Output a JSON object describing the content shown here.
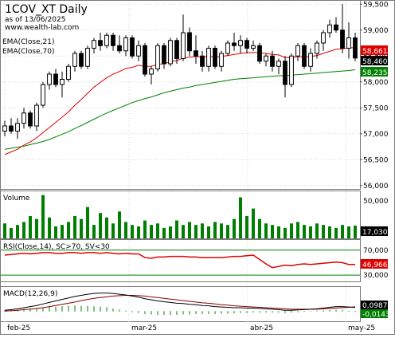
{
  "header": {
    "title": "1COV_XT Daily",
    "asof": "as of 13/06/2025",
    "site": "www.wealth-lab.com"
  },
  "legend": {
    "ema_fast": "EMA(Close,21)",
    "ema_slow": "EMA(Close,70)"
  },
  "panels": {
    "volume": "Volume",
    "rsi": "RSI(Close,14), SC>70, SV<30",
    "macd": "MACD(12,26,9)"
  },
  "colors": {
    "up": "#000000",
    "down": "#000000",
    "ema_fast": "#e00000",
    "ema_slow": "#008000",
    "volume": "#008000",
    "rsi": "#e00000",
    "level": "#008000",
    "macd": "#000000",
    "signal": "#8b0000",
    "hist": "#008000",
    "axis_tag": "#e00000"
  },
  "chart_data": [
    {
      "type": "candlestick",
      "title": "1COV_XT Daily",
      "ylim": [
        55.95,
        59.55
      ],
      "y_ticks": [
        "59,500",
        "59,000",
        "58,500",
        "58,000",
        "57,500",
        "57,000",
        "56,500",
        "56,000"
      ],
      "x_ticks": [
        "feb-25",
        "mar-25",
        "abr-25",
        "may-25"
      ],
      "last_values": {
        "ema_fast": "58,661",
        "close": "58,460",
        "ema_slow": "58,235"
      },
      "candles": [
        [
          57.05,
          57.25,
          56.95,
          57.15
        ],
        [
          57.15,
          57.3,
          57.0,
          57.05
        ],
        [
          57.05,
          57.3,
          56.9,
          57.2
        ],
        [
          57.2,
          57.5,
          57.1,
          57.4
        ],
        [
          57.4,
          57.45,
          57.1,
          57.15
        ],
        [
          57.15,
          57.6,
          57.05,
          57.55
        ],
        [
          57.55,
          58.0,
          57.5,
          57.95
        ],
        [
          57.95,
          58.2,
          57.85,
          58.15
        ],
        [
          58.15,
          58.25,
          57.9,
          57.95
        ],
        [
          57.95,
          58.2,
          57.7,
          58.05
        ],
        [
          58.05,
          58.35,
          58.0,
          58.3
        ],
        [
          58.3,
          58.6,
          58.2,
          58.55
        ],
        [
          58.55,
          58.6,
          58.25,
          58.3
        ],
        [
          58.3,
          58.7,
          58.25,
          58.65
        ],
        [
          58.65,
          58.85,
          58.55,
          58.8
        ],
        [
          58.8,
          58.95,
          58.6,
          58.7
        ],
        [
          58.7,
          58.95,
          58.65,
          58.9
        ],
        [
          58.9,
          58.95,
          58.6,
          58.7
        ],
        [
          58.7,
          58.9,
          58.55,
          58.6
        ],
        [
          58.6,
          58.9,
          58.5,
          58.85
        ],
        [
          58.85,
          58.9,
          58.45,
          58.5
        ],
        [
          58.5,
          58.8,
          58.4,
          58.7
        ],
        [
          58.7,
          58.75,
          58.1,
          58.15
        ],
        [
          58.15,
          58.3,
          57.95,
          58.25
        ],
        [
          58.25,
          58.75,
          58.2,
          58.7
        ],
        [
          58.7,
          58.75,
          58.25,
          58.35
        ],
        [
          58.35,
          58.85,
          58.3,
          58.8
        ],
        [
          58.8,
          58.85,
          58.35,
          58.45
        ],
        [
          58.45,
          59.3,
          58.4,
          58.95
        ],
        [
          58.95,
          59.05,
          58.5,
          58.6
        ],
        [
          58.6,
          58.9,
          58.35,
          58.5
        ],
        [
          58.5,
          58.6,
          58.2,
          58.3
        ],
        [
          58.3,
          58.7,
          58.2,
          58.65
        ],
        [
          58.65,
          58.7,
          58.25,
          58.3
        ],
        [
          58.3,
          58.6,
          58.2,
          58.55
        ],
        [
          58.55,
          58.8,
          58.5,
          58.75
        ],
        [
          58.75,
          58.95,
          58.6,
          58.7
        ],
        [
          58.7,
          58.9,
          58.55,
          58.8
        ],
        [
          58.8,
          58.85,
          58.55,
          58.65
        ],
        [
          58.65,
          58.8,
          58.6,
          58.7
        ],
        [
          58.7,
          58.75,
          58.35,
          58.4
        ],
        [
          58.4,
          58.55,
          58.3,
          58.5
        ],
        [
          58.5,
          58.6,
          58.2,
          58.3
        ],
        [
          58.3,
          58.45,
          58.15,
          58.4
        ],
        [
          58.4,
          58.5,
          57.7,
          57.95
        ],
        [
          57.95,
          58.55,
          57.9,
          58.5
        ],
        [
          58.5,
          58.75,
          58.4,
          58.7
        ],
        [
          58.7,
          58.75,
          58.25,
          58.3
        ],
        [
          58.3,
          58.65,
          58.2,
          58.55
        ],
        [
          58.55,
          58.8,
          58.45,
          58.75
        ],
        [
          58.75,
          59.0,
          58.6,
          58.95
        ],
        [
          58.95,
          59.2,
          58.85,
          59.1
        ],
        [
          59.1,
          59.25,
          58.95,
          59.0
        ],
        [
          59.0,
          59.5,
          58.55,
          58.65
        ],
        [
          58.65,
          59.15,
          58.45,
          58.85
        ],
        [
          58.85,
          58.95,
          58.4,
          58.46
        ]
      ],
      "ema_fast": [
        56.6,
        56.65,
        56.7,
        56.78,
        56.84,
        56.92,
        57.02,
        57.12,
        57.22,
        57.32,
        57.42,
        57.55,
        57.66,
        57.78,
        57.9,
        57.99,
        58.08,
        58.15,
        58.2,
        58.26,
        58.28,
        58.32,
        58.3,
        58.3,
        58.34,
        58.35,
        58.39,
        58.41,
        58.46,
        58.48,
        58.49,
        58.48,
        58.49,
        58.48,
        58.49,
        58.51,
        58.53,
        58.55,
        58.56,
        58.57,
        58.56,
        58.55,
        58.53,
        58.52,
        58.47,
        58.47,
        58.49,
        58.48,
        58.49,
        58.51,
        58.55,
        58.59,
        58.63,
        58.64,
        58.66,
        58.66
      ],
      "ema_slow": [
        56.7,
        56.72,
        56.74,
        56.76,
        56.79,
        56.82,
        56.85,
        56.89,
        56.94,
        56.99,
        57.04,
        57.1,
        57.16,
        57.22,
        57.28,
        57.34,
        57.4,
        57.45,
        57.5,
        57.55,
        57.6,
        57.64,
        57.68,
        57.71,
        57.75,
        57.79,
        57.82,
        57.85,
        57.88,
        57.9,
        57.93,
        57.95,
        57.97,
        57.99,
        58.01,
        58.03,
        58.05,
        58.06,
        58.07,
        58.08,
        58.09,
        58.1,
        58.11,
        58.12,
        58.12,
        58.13,
        58.14,
        58.15,
        58.16,
        58.17,
        58.18,
        58.19,
        58.2,
        58.21,
        58.22,
        58.235
      ]
    },
    {
      "type": "bar",
      "title": "Volume",
      "y_ticks": [
        "50,000"
      ],
      "ylim": [
        0,
        62000
      ],
      "last_value": "17,030",
      "values": [
        20000,
        14000,
        18000,
        22000,
        30000,
        26000,
        58000,
        28000,
        16000,
        18000,
        22000,
        30000,
        26000,
        42000,
        18000,
        34000,
        28000,
        20000,
        36000,
        22000,
        18000,
        16000,
        24000,
        18000,
        20000,
        14000,
        16000,
        24000,
        18000,
        22000,
        18000,
        20000,
        16000,
        22000,
        20000,
        18000,
        26000,
        55000,
        30000,
        40000,
        26000,
        20000,
        18000,
        16000,
        14000,
        20000,
        22000,
        18000,
        16000,
        20000,
        18000,
        16000,
        14000,
        18000,
        16000,
        17030
      ]
    },
    {
      "type": "line",
      "title": "RSI(Close,14), SC>70, SV<30",
      "ylim": [
        20,
        85
      ],
      "y_ticks": [
        "70,000",
        "30,000"
      ],
      "last_value": "46,9661",
      "levels": [
        70,
        30
      ],
      "values": [
        62,
        63,
        64,
        65,
        64,
        65,
        66,
        66,
        65,
        65,
        66,
        66,
        65,
        66,
        66,
        65,
        66,
        65,
        64,
        65,
        64,
        64,
        58,
        57,
        59,
        59,
        60,
        60,
        60,
        59,
        59,
        58,
        58,
        58,
        58,
        59,
        60,
        60,
        61,
        62,
        55,
        48,
        42,
        44,
        46,
        45,
        47,
        48,
        47,
        48,
        49,
        50,
        51,
        50,
        47,
        46.9661
      ]
    },
    {
      "type": "line",
      "title": "MACD(12,26,9)",
      "ylim": [
        -0.25,
        0.6
      ],
      "last_values": {
        "macd": "0,0987",
        "hist": "-0,0143"
      },
      "macd": [
        0.02,
        0.04,
        0.06,
        0.09,
        0.12,
        0.15,
        0.19,
        0.23,
        0.27,
        0.31,
        0.35,
        0.39,
        0.42,
        0.45,
        0.47,
        0.48,
        0.48,
        0.47,
        0.45,
        0.43,
        0.4,
        0.37,
        0.33,
        0.3,
        0.27,
        0.25,
        0.23,
        0.21,
        0.2,
        0.18,
        0.17,
        0.15,
        0.14,
        0.12,
        0.11,
        0.1,
        0.09,
        0.09,
        0.08,
        0.08,
        0.07,
        0.06,
        0.05,
        0.04,
        0.02,
        0.02,
        0.03,
        0.04,
        0.05,
        0.06,
        0.08,
        0.1,
        0.12,
        0.12,
        0.11,
        0.0987
      ],
      "signal": [
        0.0,
        0.01,
        0.02,
        0.04,
        0.05,
        0.07,
        0.09,
        0.12,
        0.15,
        0.18,
        0.21,
        0.24,
        0.28,
        0.31,
        0.34,
        0.36,
        0.38,
        0.4,
        0.41,
        0.42,
        0.42,
        0.41,
        0.4,
        0.38,
        0.36,
        0.34,
        0.32,
        0.3,
        0.28,
        0.26,
        0.24,
        0.22,
        0.21,
        0.19,
        0.17,
        0.16,
        0.14,
        0.13,
        0.12,
        0.11,
        0.1,
        0.09,
        0.08,
        0.07,
        0.06,
        0.05,
        0.05,
        0.05,
        0.05,
        0.05,
        0.06,
        0.07,
        0.08,
        0.09,
        0.1,
        0.113
      ],
      "hist": [
        0.02,
        0.03,
        0.04,
        0.05,
        0.07,
        0.08,
        0.1,
        0.11,
        0.12,
        0.13,
        0.14,
        0.15,
        0.14,
        0.14,
        0.13,
        0.12,
        0.1,
        0.07,
        0.04,
        0.01,
        -0.02,
        -0.04,
        -0.07,
        -0.08,
        -0.09,
        -0.09,
        -0.09,
        -0.09,
        -0.08,
        -0.08,
        -0.07,
        -0.07,
        -0.07,
        -0.07,
        -0.06,
        -0.06,
        -0.05,
        -0.04,
        -0.04,
        -0.03,
        -0.03,
        -0.03,
        -0.03,
        -0.03,
        -0.04,
        -0.03,
        -0.02,
        -0.01,
        0.0,
        0.01,
        0.02,
        0.03,
        0.04,
        0.03,
        0.01,
        -0.0143
      ]
    }
  ]
}
